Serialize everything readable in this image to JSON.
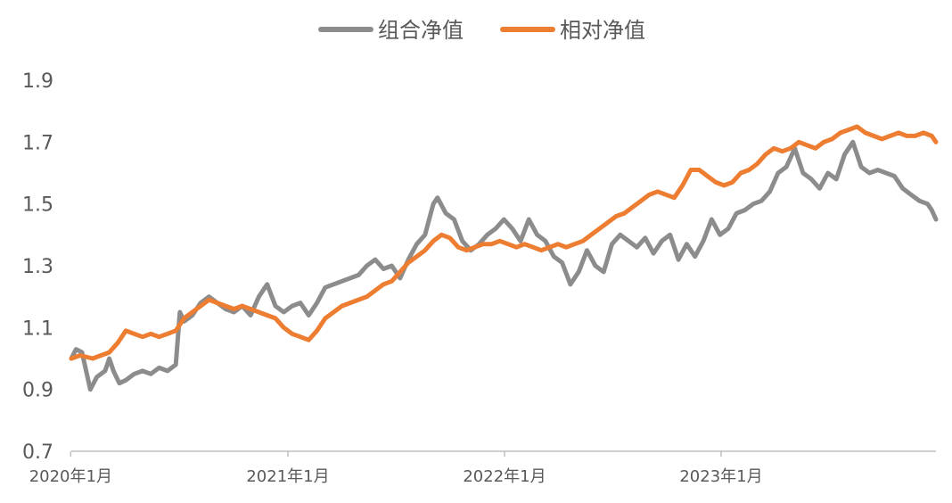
{
  "chart_data": {
    "type": "line",
    "title": "",
    "xlabel": "",
    "ylabel": "",
    "ylim": [
      0.7,
      1.9
    ],
    "yticks": [
      "0.7",
      "0.9",
      "1.1",
      "1.3",
      "1.5",
      "1.7",
      "1.9"
    ],
    "xlim": [
      "2020-01-02",
      "2023-12-29"
    ],
    "xticks": [
      {
        "date": "2020-01-01",
        "label": "2020年1月"
      },
      {
        "date": "2021-01-01",
        "label": "2021年1月"
      },
      {
        "date": "2022-01-01",
        "label": "2022年1月"
      },
      {
        "date": "2023-01-01",
        "label": "2023年1月"
      }
    ],
    "legend_position": "top-center",
    "grid": false,
    "series": [
      {
        "name": "组合净值",
        "color": "#8C8C8C",
        "points": [
          [
            "2020-01-02",
            1.0
          ],
          [
            "2020-01-10",
            1.03
          ],
          [
            "2020-01-20",
            1.02
          ],
          [
            "2020-02-03",
            0.9
          ],
          [
            "2020-02-14",
            0.94
          ],
          [
            "2020-02-28",
            0.96
          ],
          [
            "2020-03-06",
            1.0
          ],
          [
            "2020-03-13",
            0.96
          ],
          [
            "2020-03-23",
            0.92
          ],
          [
            "2020-04-03",
            0.93
          ],
          [
            "2020-04-17",
            0.95
          ],
          [
            "2020-05-01",
            0.96
          ],
          [
            "2020-05-15",
            0.95
          ],
          [
            "2020-05-29",
            0.97
          ],
          [
            "2020-06-12",
            0.96
          ],
          [
            "2020-06-26",
            0.98
          ],
          [
            "2020-07-03",
            1.15
          ],
          [
            "2020-07-10",
            1.12
          ],
          [
            "2020-07-24",
            1.14
          ],
          [
            "2020-08-07",
            1.18
          ],
          [
            "2020-08-21",
            1.2
          ],
          [
            "2020-09-04",
            1.18
          ],
          [
            "2020-09-18",
            1.16
          ],
          [
            "2020-10-02",
            1.15
          ],
          [
            "2020-10-16",
            1.17
          ],
          [
            "2020-10-30",
            1.14
          ],
          [
            "2020-11-13",
            1.2
          ],
          [
            "2020-11-27",
            1.24
          ],
          [
            "2020-12-11",
            1.17
          ],
          [
            "2020-12-25",
            1.15
          ],
          [
            "2021-01-08",
            1.17
          ],
          [
            "2021-01-22",
            1.18
          ],
          [
            "2021-02-05",
            1.14
          ],
          [
            "2021-02-19",
            1.18
          ],
          [
            "2021-03-05",
            1.23
          ],
          [
            "2021-03-19",
            1.24
          ],
          [
            "2021-04-02",
            1.25
          ],
          [
            "2021-04-16",
            1.26
          ],
          [
            "2021-04-30",
            1.27
          ],
          [
            "2021-05-14",
            1.3
          ],
          [
            "2021-05-28",
            1.32
          ],
          [
            "2021-06-11",
            1.29
          ],
          [
            "2021-06-25",
            1.3
          ],
          [
            "2021-07-09",
            1.26
          ],
          [
            "2021-07-23",
            1.32
          ],
          [
            "2021-08-06",
            1.37
          ],
          [
            "2021-08-20",
            1.4
          ],
          [
            "2021-09-03",
            1.5
          ],
          [
            "2021-09-10",
            1.52
          ],
          [
            "2021-09-24",
            1.47
          ],
          [
            "2021-10-08",
            1.45
          ],
          [
            "2021-10-22",
            1.38
          ],
          [
            "2021-11-05",
            1.35
          ],
          [
            "2021-11-19",
            1.37
          ],
          [
            "2021-12-03",
            1.4
          ],
          [
            "2021-12-17",
            1.42
          ],
          [
            "2021-12-31",
            1.45
          ],
          [
            "2022-01-14",
            1.42
          ],
          [
            "2022-01-28",
            1.38
          ],
          [
            "2022-02-11",
            1.45
          ],
          [
            "2022-02-25",
            1.4
          ],
          [
            "2022-03-11",
            1.38
          ],
          [
            "2022-03-25",
            1.33
          ],
          [
            "2022-04-08",
            1.31
          ],
          [
            "2022-04-22",
            1.24
          ],
          [
            "2022-05-06",
            1.28
          ],
          [
            "2022-05-20",
            1.35
          ],
          [
            "2022-06-03",
            1.3
          ],
          [
            "2022-06-17",
            1.28
          ],
          [
            "2022-07-01",
            1.37
          ],
          [
            "2022-07-15",
            1.4
          ],
          [
            "2022-07-29",
            1.38
          ],
          [
            "2022-08-12",
            1.36
          ],
          [
            "2022-08-26",
            1.39
          ],
          [
            "2022-09-09",
            1.34
          ],
          [
            "2022-09-23",
            1.38
          ],
          [
            "2022-10-07",
            1.4
          ],
          [
            "2022-10-21",
            1.32
          ],
          [
            "2022-11-04",
            1.37
          ],
          [
            "2022-11-18",
            1.33
          ],
          [
            "2022-12-02",
            1.38
          ],
          [
            "2022-12-16",
            1.45
          ],
          [
            "2022-12-30",
            1.4
          ],
          [
            "2023-01-13",
            1.42
          ],
          [
            "2023-01-27",
            1.47
          ],
          [
            "2023-02-10",
            1.48
          ],
          [
            "2023-02-24",
            1.5
          ],
          [
            "2023-03-10",
            1.51
          ],
          [
            "2023-03-24",
            1.54
          ],
          [
            "2023-04-07",
            1.6
          ],
          [
            "2023-04-21",
            1.62
          ],
          [
            "2023-05-05",
            1.68
          ],
          [
            "2023-05-19",
            1.6
          ],
          [
            "2023-06-02",
            1.58
          ],
          [
            "2023-06-16",
            1.55
          ],
          [
            "2023-06-30",
            1.6
          ],
          [
            "2023-07-14",
            1.58
          ],
          [
            "2023-07-28",
            1.66
          ],
          [
            "2023-08-11",
            1.7
          ],
          [
            "2023-08-25",
            1.62
          ],
          [
            "2023-09-08",
            1.6
          ],
          [
            "2023-09-22",
            1.61
          ],
          [
            "2023-10-06",
            1.6
          ],
          [
            "2023-10-20",
            1.59
          ],
          [
            "2023-11-03",
            1.55
          ],
          [
            "2023-11-17",
            1.53
          ],
          [
            "2023-12-01",
            1.51
          ],
          [
            "2023-12-15",
            1.5
          ],
          [
            "2023-12-22",
            1.48
          ],
          [
            "2023-12-29",
            1.45
          ]
        ]
      },
      {
        "name": "相对净值",
        "color": "#ED7D31",
        "points": [
          [
            "2020-01-02",
            1.0
          ],
          [
            "2020-01-17",
            1.01
          ],
          [
            "2020-02-07",
            1.0
          ],
          [
            "2020-02-21",
            1.01
          ],
          [
            "2020-03-06",
            1.02
          ],
          [
            "2020-03-20",
            1.05
          ],
          [
            "2020-04-03",
            1.09
          ],
          [
            "2020-04-17",
            1.08
          ],
          [
            "2020-05-01",
            1.07
          ],
          [
            "2020-05-15",
            1.08
          ],
          [
            "2020-05-29",
            1.07
          ],
          [
            "2020-06-12",
            1.08
          ],
          [
            "2020-06-26",
            1.09
          ],
          [
            "2020-07-10",
            1.13
          ],
          [
            "2020-07-24",
            1.15
          ],
          [
            "2020-08-07",
            1.17
          ],
          [
            "2020-08-21",
            1.19
          ],
          [
            "2020-09-04",
            1.18
          ],
          [
            "2020-09-18",
            1.17
          ],
          [
            "2020-10-02",
            1.16
          ],
          [
            "2020-10-16",
            1.17
          ],
          [
            "2020-10-30",
            1.16
          ],
          [
            "2020-11-13",
            1.15
          ],
          [
            "2020-11-27",
            1.14
          ],
          [
            "2020-12-11",
            1.13
          ],
          [
            "2020-12-25",
            1.1
          ],
          [
            "2021-01-08",
            1.08
          ],
          [
            "2021-01-22",
            1.07
          ],
          [
            "2021-02-05",
            1.06
          ],
          [
            "2021-02-19",
            1.09
          ],
          [
            "2021-03-05",
            1.13
          ],
          [
            "2021-03-19",
            1.15
          ],
          [
            "2021-04-02",
            1.17
          ],
          [
            "2021-04-16",
            1.18
          ],
          [
            "2021-04-30",
            1.19
          ],
          [
            "2021-05-14",
            1.2
          ],
          [
            "2021-05-28",
            1.22
          ],
          [
            "2021-06-11",
            1.24
          ],
          [
            "2021-06-25",
            1.25
          ],
          [
            "2021-07-09",
            1.28
          ],
          [
            "2021-07-23",
            1.31
          ],
          [
            "2021-08-06",
            1.33
          ],
          [
            "2021-08-20",
            1.35
          ],
          [
            "2021-09-03",
            1.38
          ],
          [
            "2021-09-17",
            1.4
          ],
          [
            "2021-10-01",
            1.39
          ],
          [
            "2021-10-15",
            1.36
          ],
          [
            "2021-10-29",
            1.35
          ],
          [
            "2021-11-12",
            1.36
          ],
          [
            "2021-11-26",
            1.37
          ],
          [
            "2021-12-10",
            1.37
          ],
          [
            "2021-12-24",
            1.38
          ],
          [
            "2022-01-07",
            1.37
          ],
          [
            "2022-01-21",
            1.36
          ],
          [
            "2022-02-04",
            1.37
          ],
          [
            "2022-02-18",
            1.36
          ],
          [
            "2022-03-04",
            1.35
          ],
          [
            "2022-03-18",
            1.36
          ],
          [
            "2022-04-01",
            1.37
          ],
          [
            "2022-04-15",
            1.36
          ],
          [
            "2022-04-29",
            1.37
          ],
          [
            "2022-05-13",
            1.38
          ],
          [
            "2022-05-27",
            1.4
          ],
          [
            "2022-06-10",
            1.42
          ],
          [
            "2022-06-24",
            1.44
          ],
          [
            "2022-07-08",
            1.46
          ],
          [
            "2022-07-22",
            1.47
          ],
          [
            "2022-08-05",
            1.49
          ],
          [
            "2022-08-19",
            1.51
          ],
          [
            "2022-09-02",
            1.53
          ],
          [
            "2022-09-16",
            1.54
          ],
          [
            "2022-09-30",
            1.53
          ],
          [
            "2022-10-14",
            1.52
          ],
          [
            "2022-10-28",
            1.56
          ],
          [
            "2022-11-11",
            1.61
          ],
          [
            "2022-11-25",
            1.61
          ],
          [
            "2022-12-09",
            1.59
          ],
          [
            "2022-12-23",
            1.57
          ],
          [
            "2023-01-06",
            1.56
          ],
          [
            "2023-01-20",
            1.57
          ],
          [
            "2023-02-03",
            1.6
          ],
          [
            "2023-02-17",
            1.61
          ],
          [
            "2023-03-03",
            1.63
          ],
          [
            "2023-03-17",
            1.66
          ],
          [
            "2023-03-31",
            1.68
          ],
          [
            "2023-04-14",
            1.67
          ],
          [
            "2023-04-28",
            1.68
          ],
          [
            "2023-05-12",
            1.7
          ],
          [
            "2023-05-26",
            1.69
          ],
          [
            "2023-06-09",
            1.68
          ],
          [
            "2023-06-23",
            1.7
          ],
          [
            "2023-07-07",
            1.71
          ],
          [
            "2023-07-21",
            1.73
          ],
          [
            "2023-08-04",
            1.74
          ],
          [
            "2023-08-18",
            1.75
          ],
          [
            "2023-09-01",
            1.73
          ],
          [
            "2023-09-15",
            1.72
          ],
          [
            "2023-09-29",
            1.71
          ],
          [
            "2023-10-13",
            1.72
          ],
          [
            "2023-10-27",
            1.73
          ],
          [
            "2023-11-10",
            1.72
          ],
          [
            "2023-11-24",
            1.72
          ],
          [
            "2023-12-08",
            1.73
          ],
          [
            "2023-12-22",
            1.72
          ],
          [
            "2023-12-29",
            1.7
          ]
        ]
      }
    ]
  }
}
